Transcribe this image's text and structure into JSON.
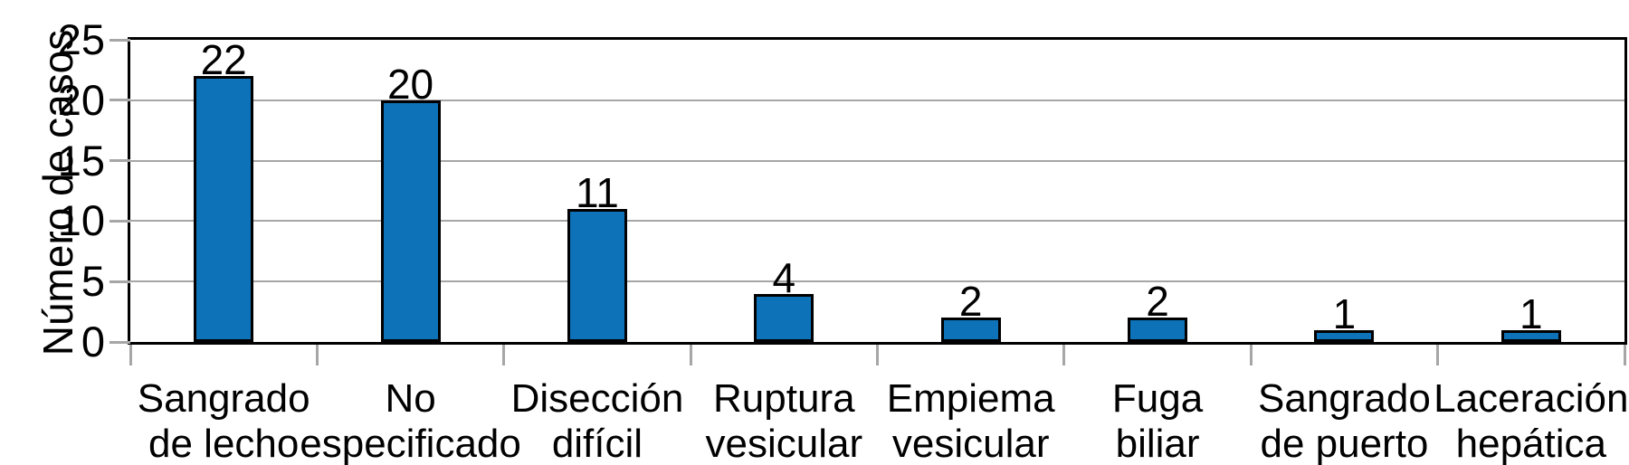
{
  "chart_data": {
    "type": "bar",
    "title": "",
    "xlabel": "",
    "ylabel": "Número de casos",
    "categories": [
      "Sangrado de lecho",
      "No especificado",
      "Disección difícil",
      "Ruptura vesicular",
      "Empiema vesicular",
      "Fuga biliar",
      "Sangrado de puerto",
      "Laceración hepática"
    ],
    "categories_wrapped": [
      [
        "Sangrado",
        "de lecho"
      ],
      [
        "No",
        "especificado"
      ],
      [
        "Disección",
        "difícil"
      ],
      [
        "Ruptura",
        "vesicular"
      ],
      [
        "Empiema",
        "vesicular"
      ],
      [
        "Fuga",
        "biliar"
      ],
      [
        "Sangrado",
        "de puerto"
      ],
      [
        "Laceración",
        "hepática"
      ]
    ],
    "values": [
      22,
      20,
      11,
      4,
      2,
      2,
      1,
      1
    ],
    "value_labels": [
      "22",
      "20",
      "11",
      "4",
      "2",
      "2",
      "1",
      "1"
    ],
    "ylim": [
      0,
      25
    ],
    "yticks": [
      0,
      5,
      10,
      15,
      20,
      25
    ],
    "grid": "horizontal",
    "legend_position": "none",
    "colors": {
      "bar_fill": "#0d72b8",
      "bar_border": "#000000",
      "gridline": "#a6a6a6",
      "tick": "#a6a6a6",
      "axis": "#000000",
      "text": "#000000",
      "background": "#ffffff"
    }
  }
}
